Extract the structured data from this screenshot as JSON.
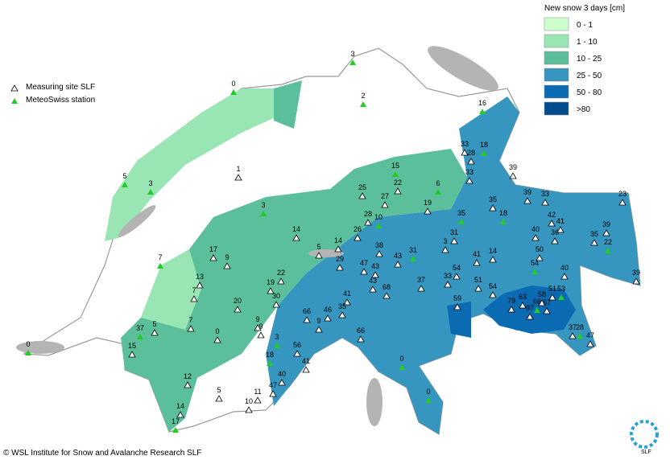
{
  "legend": {
    "title": "New snow 3 days [cm]",
    "classes": [
      {
        "label": "0 - 1",
        "color": "#ccffcc"
      },
      {
        "label": "1 - 10",
        "color": "#99e6b4"
      },
      {
        "label": "10 - 25",
        "color": "#5cbf9c"
      },
      {
        "label": "25 - 50",
        "color": "#3796bf"
      },
      {
        "label": "50 - 80",
        "color": "#0a6bb3"
      },
      {
        "label": ">80",
        "color": "#004c8c"
      }
    ]
  },
  "symbols": {
    "measuring_site": "Measuring site SLF",
    "meteoswiss": "MeteoSwiss station"
  },
  "stations": [
    "0",
    "3",
    "2",
    "1",
    "5",
    "3",
    "3",
    "15",
    "22",
    "6",
    "25",
    "27",
    "19",
    "35",
    "28",
    "10",
    "16",
    "33",
    "18",
    "28",
    "33",
    "39",
    "35",
    "39",
    "33",
    "23",
    "18",
    "42",
    "41",
    "39",
    "35",
    "22",
    "40",
    "36",
    "50",
    "31",
    "3",
    "14",
    "26",
    "14",
    "38",
    "17",
    "9",
    "5",
    "29",
    "31",
    "43",
    "41",
    "14",
    "47",
    "43",
    "54",
    "54",
    "40",
    "39",
    "13",
    "22",
    "19",
    "33",
    "51",
    "43",
    "68",
    "37",
    "54",
    "51",
    "53",
    "7",
    "30",
    "41",
    "20",
    "59",
    "79",
    "63",
    "58",
    "67",
    "66",
    "97",
    "37",
    "35",
    "46",
    "66",
    "9",
    "9",
    "9",
    "7",
    "5",
    "0",
    "37",
    "28",
    "47",
    "66",
    "3",
    "56",
    "15",
    "41",
    "18",
    "0",
    "40",
    "47",
    "12",
    "5",
    "11",
    "10",
    "14",
    "17",
    "0",
    "0",
    "7"
  ],
  "footer": "© WSL Institute for Snow and Avalanche Research SLF",
  "logo": "SLF"
}
